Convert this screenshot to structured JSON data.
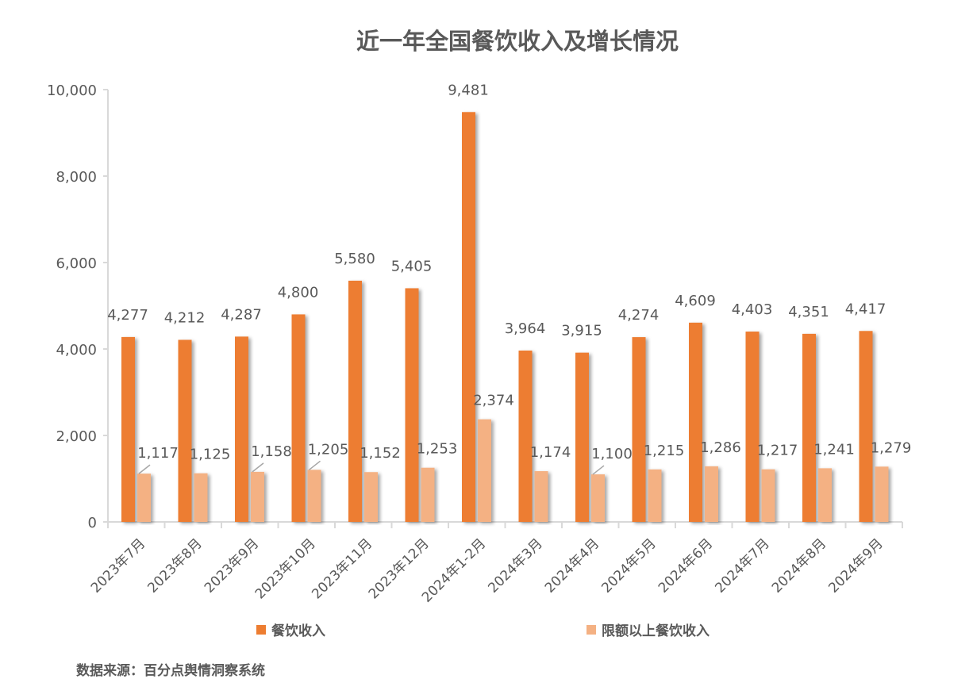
{
  "chart_data": {
    "type": "bar",
    "title": "近一年全国餐饮收入及增长情况",
    "categories": [
      "2023年7月",
      "2023年8月",
      "2023年9月",
      "2023年10月",
      "2023年11月",
      "2023年12月",
      "2024年1-2月",
      "2024年3月",
      "2024年4月",
      "2024年5月",
      "2024年6月",
      "2024年7月",
      "2024年8月",
      "2024年9月"
    ],
    "series": [
      {
        "name": "餐饮收入",
        "color": "#ED7D31",
        "values": [
          4277,
          4212,
          4287,
          4800,
          5580,
          5405,
          9481,
          3964,
          3915,
          4274,
          4609,
          4403,
          4351,
          4417
        ],
        "labels": [
          "4,277",
          "4,212",
          "4,287",
          "4,800",
          "5,580",
          "5,405",
          "9,481",
          "3,964",
          "3,915",
          "4,274",
          "4,609",
          "4,403",
          "4,351",
          "4,417"
        ]
      },
      {
        "name": "限额以上餐饮收入",
        "color": "#F4B183",
        "values": [
          1117,
          1125,
          1158,
          1205,
          1152,
          1253,
          2374,
          1174,
          1100,
          1215,
          1286,
          1217,
          1241,
          1279
        ],
        "labels": [
          "1,117",
          "1,125",
          "1,158",
          "1,205",
          "1,152",
          "1,253",
          "2,374",
          "1,174",
          "1,100",
          "1,215",
          "1,286",
          "1,217",
          "1,241",
          "1,279"
        ]
      }
    ],
    "ylim": [
      0,
      10000
    ],
    "yticks": [
      0,
      2000,
      4000,
      6000,
      8000,
      10000
    ],
    "ytick_labels": [
      "0",
      "2,000",
      "4,000",
      "6,000",
      "8,000",
      "10,000"
    ],
    "xlabel": "",
    "ylabel": "",
    "grid": false,
    "legend_position": "bottom"
  },
  "source": "数据来源：百分点舆情洞察系统"
}
